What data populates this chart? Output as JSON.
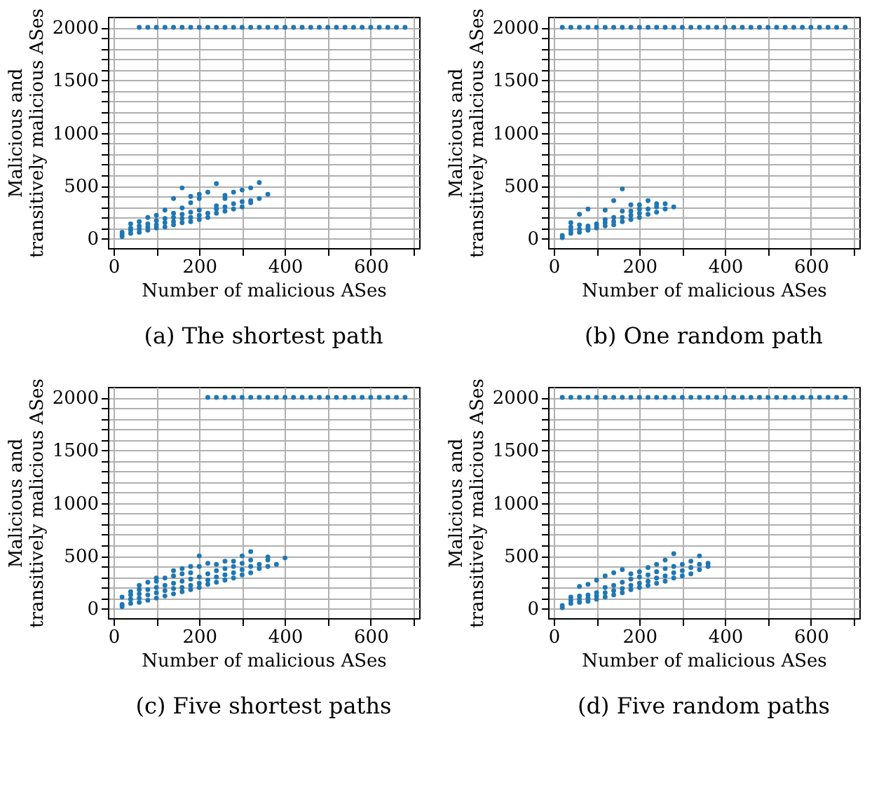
{
  "chart_data": [
    {
      "type": "scatter",
      "title": "(a) The shortest path",
      "xlabel": "Number of malicious ASes",
      "ylabel": "Malicious and\ntransitively malicious ASes",
      "marker": "circle",
      "grid": true,
      "xlim": [
        -13,
        713
      ],
      "ylim": [
        -90,
        2100
      ],
      "xticks": [
        0,
        {
          "value": 100,
          "label": null
        },
        200,
        {
          "value": 300,
          "label": null
        },
        400,
        {
          "value": 500,
          "label": null
        },
        600,
        {
          "value": 700,
          "label": null
        }
      ],
      "yticks": [
        0,
        {
          "value": 100,
          "label": null
        },
        {
          "value": 200,
          "label": null
        },
        {
          "value": 300,
          "label": null
        },
        {
          "value": 400,
          "label": null
        },
        500,
        {
          "value": 600,
          "label": null
        },
        {
          "value": 700,
          "label": null
        },
        {
          "value": 800,
          "label": null
        },
        {
          "value": 900,
          "label": null
        },
        1000,
        {
          "value": 1100,
          "label": null
        },
        {
          "value": 1200,
          "label": null
        },
        {
          "value": 1300,
          "label": null
        },
        {
          "value": 1400,
          "label": null
        },
        1500,
        {
          "value": 1600,
          "label": null
        },
        {
          "value": 1700,
          "label": null
        },
        {
          "value": 1800,
          "label": null
        },
        {
          "value": 1900,
          "label": null
        },
        2000
      ],
      "series": [
        {
          "color": "#1f77b4",
          "x": [
            60,
            80,
            100,
            120,
            140,
            160,
            180,
            200,
            220,
            240,
            260,
            280,
            300,
            320,
            340,
            360,
            380,
            400,
            420,
            440,
            460,
            480,
            500,
            520,
            540,
            560,
            580,
            600,
            620,
            640,
            660,
            680,
            20,
            20,
            20,
            40,
            40,
            40,
            40,
            60,
            60,
            60,
            60,
            80,
            80,
            80,
            80,
            100,
            100,
            100,
            100,
            120,
            120,
            120,
            120,
            140,
            140,
            140,
            140,
            140,
            160,
            160,
            160,
            160,
            160,
            180,
            180,
            180,
            180,
            180,
            200,
            200,
            200,
            200,
            200,
            220,
            220,
            220,
            240,
            240,
            240,
            240,
            260,
            260,
            260,
            260,
            280,
            280,
            280,
            300,
            300,
            300,
            320,
            320,
            320,
            340,
            340,
            360
          ],
          "values": [
            2000,
            2000,
            2000,
            2000,
            2000,
            2000,
            2000,
            2000,
            2000,
            2000,
            2000,
            2000,
            2000,
            2000,
            2000,
            2000,
            2000,
            2000,
            2000,
            2000,
            2000,
            2000,
            2000,
            2000,
            2000,
            2000,
            2000,
            2000,
            2000,
            2000,
            2000,
            2000,
            20,
            40,
            60,
            50,
            80,
            100,
            140,
            60,
            90,
            120,
            160,
            80,
            110,
            140,
            200,
            100,
            130,
            170,
            220,
            110,
            150,
            190,
            270,
            130,
            160,
            200,
            240,
            380,
            150,
            190,
            230,
            290,
            480,
            160,
            200,
            250,
            340,
            400,
            180,
            220,
            270,
            380,
            420,
            200,
            240,
            440,
            240,
            280,
            310,
            520,
            260,
            300,
            380,
            410,
            280,
            330,
            440,
            300,
            350,
            460,
            340,
            360,
            480,
            380,
            530,
            420
          ]
        }
      ]
    },
    {
      "type": "scatter",
      "title": "(b) One random path",
      "xlabel": "Number of malicious ASes",
      "ylabel": "Malicious and\ntransitively malicious ASes",
      "marker": "circle",
      "grid": true,
      "xlim": [
        -13,
        713
      ],
      "ylim": [
        -90,
        2100
      ],
      "xticks": [
        0,
        {
          "value": 100,
          "label": null
        },
        200,
        {
          "value": 300,
          "label": null
        },
        400,
        {
          "value": 500,
          "label": null
        },
        600,
        {
          "value": 700,
          "label": null
        }
      ],
      "yticks": [
        0,
        {
          "value": 100,
          "label": null
        },
        {
          "value": 200,
          "label": null
        },
        {
          "value": 300,
          "label": null
        },
        {
          "value": 400,
          "label": null
        },
        500,
        {
          "value": 600,
          "label": null
        },
        {
          "value": 700,
          "label": null
        },
        {
          "value": 800,
          "label": null
        },
        {
          "value": 900,
          "label": null
        },
        1000,
        {
          "value": 1100,
          "label": null
        },
        {
          "value": 1200,
          "label": null
        },
        {
          "value": 1300,
          "label": null
        },
        {
          "value": 1400,
          "label": null
        },
        1500,
        {
          "value": 1600,
          "label": null
        },
        {
          "value": 1700,
          "label": null
        },
        {
          "value": 1800,
          "label": null
        },
        {
          "value": 1900,
          "label": null
        },
        2000
      ],
      "series": [
        {
          "color": "#1f77b4",
          "x": [
            20,
            40,
            60,
            80,
            100,
            120,
            140,
            160,
            180,
            200,
            220,
            240,
            260,
            280,
            300,
            320,
            340,
            360,
            380,
            400,
            420,
            440,
            460,
            480,
            500,
            520,
            540,
            560,
            580,
            600,
            620,
            640,
            660,
            680,
            20,
            20,
            40,
            40,
            40,
            40,
            60,
            60,
            60,
            60,
            80,
            80,
            80,
            80,
            100,
            100,
            100,
            120,
            120,
            120,
            120,
            140,
            140,
            140,
            140,
            160,
            160,
            160,
            160,
            180,
            180,
            180,
            180,
            200,
            200,
            200,
            200,
            220,
            220,
            220,
            240,
            240,
            240,
            260,
            260,
            280
          ],
          "values": [
            2000,
            2000,
            2000,
            2000,
            2000,
            2000,
            2000,
            2000,
            2000,
            2000,
            2000,
            2000,
            2000,
            2000,
            2000,
            2000,
            2000,
            2000,
            2000,
            2000,
            2000,
            2000,
            2000,
            2000,
            2000,
            2000,
            2000,
            2000,
            2000,
            2000,
            2000,
            2000,
            2000,
            2000,
            10,
            30,
            50,
            80,
            110,
            150,
            60,
            90,
            130,
            230,
            80,
            100,
            120,
            280,
            100,
            120,
            140,
            120,
            150,
            180,
            270,
            130,
            160,
            200,
            360,
            160,
            200,
            260,
            470,
            180,
            220,
            260,
            320,
            200,
            240,
            280,
            320,
            230,
            280,
            360,
            250,
            300,
            330,
            280,
            330,
            300
          ]
        }
      ]
    },
    {
      "type": "scatter",
      "title": "(c) Five shortest paths",
      "xlabel": "Number of malicious ASes",
      "ylabel": "Malicious and\ntransitively malicious ASes",
      "marker": "circle",
      "grid": true,
      "xlim": [
        -13,
        713
      ],
      "ylim": [
        -90,
        2100
      ],
      "xticks": [
        0,
        {
          "value": 100,
          "label": null
        },
        200,
        {
          "value": 300,
          "label": null
        },
        400,
        {
          "value": 500,
          "label": null
        },
        600,
        {
          "value": 700,
          "label": null
        }
      ],
      "yticks": [
        0,
        {
          "value": 100,
          "label": null
        },
        {
          "value": 200,
          "label": null
        },
        {
          "value": 300,
          "label": null
        },
        {
          "value": 400,
          "label": null
        },
        500,
        {
          "value": 600,
          "label": null
        },
        {
          "value": 700,
          "label": null
        },
        {
          "value": 800,
          "label": null
        },
        {
          "value": 900,
          "label": null
        },
        1000,
        {
          "value": 1100,
          "label": null
        },
        {
          "value": 1200,
          "label": null
        },
        {
          "value": 1300,
          "label": null
        },
        {
          "value": 1400,
          "label": null
        },
        1500,
        {
          "value": 1600,
          "label": null
        },
        {
          "value": 1700,
          "label": null
        },
        {
          "value": 1800,
          "label": null
        },
        {
          "value": 1900,
          "label": null
        },
        2000
      ],
      "series": [
        {
          "color": "#1f77b4",
          "x": [
            220,
            240,
            260,
            280,
            300,
            320,
            340,
            360,
            380,
            400,
            420,
            440,
            460,
            480,
            500,
            520,
            540,
            560,
            580,
            600,
            620,
            640,
            660,
            680,
            20,
            20,
            20,
            40,
            40,
            40,
            40,
            60,
            60,
            60,
            60,
            60,
            80,
            80,
            80,
            80,
            100,
            100,
            100,
            100,
            100,
            120,
            120,
            120,
            120,
            140,
            140,
            140,
            140,
            140,
            160,
            160,
            160,
            160,
            160,
            180,
            180,
            180,
            180,
            180,
            200,
            200,
            200,
            200,
            200,
            220,
            220,
            220,
            220,
            240,
            240,
            240,
            240,
            260,
            260,
            260,
            260,
            280,
            280,
            280,
            280,
            300,
            300,
            300,
            300,
            320,
            320,
            320,
            320,
            340,
            340,
            360,
            360,
            360,
            380,
            400
          ],
          "values": [
            2000,
            2000,
            2000,
            2000,
            2000,
            2000,
            2000,
            2000,
            2000,
            2000,
            2000,
            2000,
            2000,
            2000,
            2000,
            2000,
            2000,
            2000,
            2000,
            2000,
            2000,
            2000,
            2000,
            2000,
            20,
            40,
            110,
            50,
            90,
            130,
            160,
            60,
            100,
            140,
            180,
            220,
            80,
            130,
            180,
            250,
            100,
            150,
            200,
            260,
            290,
            120,
            170,
            220,
            290,
            140,
            190,
            240,
            310,
            360,
            160,
            200,
            260,
            330,
            380,
            180,
            220,
            280,
            340,
            400,
            200,
            240,
            300,
            400,
            500,
            230,
            270,
            330,
            430,
            250,
            300,
            360,
            420,
            270,
            320,
            380,
            450,
            290,
            340,
            400,
            450,
            320,
            370,
            430,
            500,
            340,
            400,
            460,
            540,
            380,
            420,
            400,
            460,
            490,
            420,
            480
          ]
        }
      ]
    },
    {
      "type": "scatter",
      "title": "(d) Five random paths",
      "xlabel": "Number of malicious ASes",
      "ylabel": "Malicious and\ntransitively malicious ASes",
      "marker": "circle",
      "grid": true,
      "xlim": [
        -13,
        713
      ],
      "ylim": [
        -90,
        2100
      ],
      "xticks": [
        0,
        {
          "value": 100,
          "label": null
        },
        200,
        {
          "value": 300,
          "label": null
        },
        400,
        {
          "value": 500,
          "label": null
        },
        600,
        {
          "value": 700,
          "label": null
        }
      ],
      "yticks": [
        0,
        {
          "value": 100,
          "label": null
        },
        {
          "value": 200,
          "label": null
        },
        {
          "value": 300,
          "label": null
        },
        {
          "value": 400,
          "label": null
        },
        500,
        {
          "value": 600,
          "label": null
        },
        {
          "value": 700,
          "label": null
        },
        {
          "value": 800,
          "label": null
        },
        {
          "value": 900,
          "label": null
        },
        1000,
        {
          "value": 1100,
          "label": null
        },
        {
          "value": 1200,
          "label": null
        },
        {
          "value": 1300,
          "label": null
        },
        {
          "value": 1400,
          "label": null
        },
        1500,
        {
          "value": 1600,
          "label": null
        },
        {
          "value": 1700,
          "label": null
        },
        {
          "value": 1800,
          "label": null
        },
        {
          "value": 1900,
          "label": null
        },
        2000
      ],
      "series": [
        {
          "color": "#1f77b4",
          "x": [
            20,
            40,
            60,
            80,
            100,
            120,
            140,
            160,
            180,
            200,
            220,
            240,
            260,
            280,
            300,
            320,
            340,
            360,
            380,
            400,
            420,
            440,
            460,
            480,
            500,
            520,
            540,
            560,
            580,
            600,
            620,
            640,
            660,
            680,
            20,
            20,
            40,
            40,
            40,
            60,
            60,
            60,
            60,
            80,
            80,
            80,
            80,
            100,
            100,
            100,
            100,
            120,
            120,
            120,
            120,
            140,
            140,
            140,
            140,
            160,
            160,
            160,
            160,
            180,
            180,
            180,
            180,
            200,
            200,
            200,
            200,
            220,
            220,
            220,
            220,
            240,
            240,
            240,
            240,
            260,
            260,
            260,
            260,
            280,
            280,
            280,
            280,
            300,
            300,
            300,
            320,
            320,
            320,
            340,
            340,
            340,
            360,
            360
          ],
          "values": [
            2000,
            2000,
            2000,
            2000,
            2000,
            2000,
            2000,
            2000,
            2000,
            2000,
            2000,
            2000,
            2000,
            2000,
            2000,
            2000,
            2000,
            2000,
            2000,
            2000,
            2000,
            2000,
            2000,
            2000,
            2000,
            2000,
            2000,
            2000,
            2000,
            2000,
            2000,
            2000,
            2000,
            2000,
            10,
            30,
            50,
            80,
            110,
            60,
            90,
            120,
            210,
            70,
            100,
            130,
            230,
            90,
            120,
            150,
            270,
            110,
            150,
            200,
            310,
            130,
            170,
            220,
            340,
            150,
            190,
            250,
            370,
            180,
            220,
            280,
            330,
            200,
            240,
            300,
            350,
            220,
            260,
            320,
            390,
            240,
            290,
            350,
            420,
            260,
            310,
            380,
            460,
            290,
            340,
            400,
            520,
            310,
            360,
            420,
            330,
            390,
            450,
            370,
            420,
            500,
            400,
            430
          ]
        }
      ]
    }
  ]
}
